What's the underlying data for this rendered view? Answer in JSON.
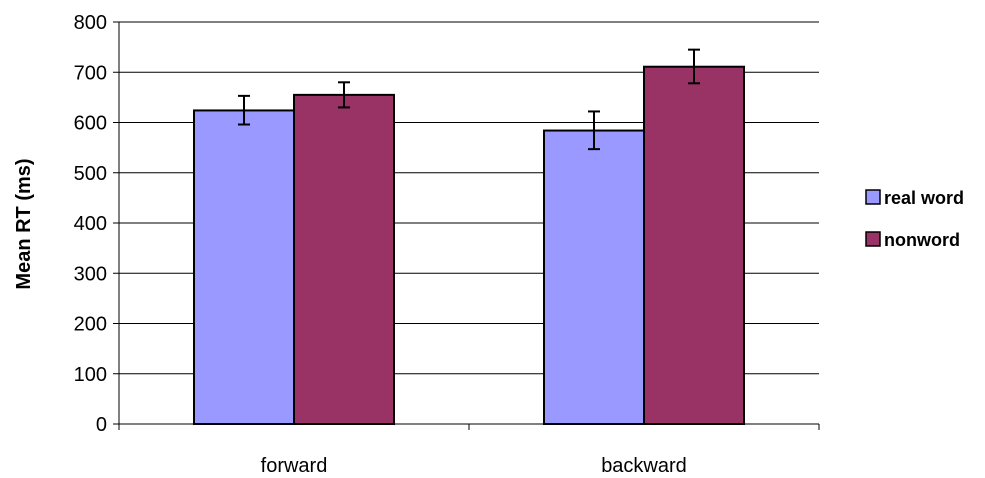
{
  "chart_data": {
    "type": "bar",
    "title": "",
    "xlabel": "",
    "ylabel": "Mean RT (ms)",
    "categories": [
      "forward",
      "backward"
    ],
    "ylim": [
      0,
      800
    ],
    "yticks": [
      0,
      100,
      200,
      300,
      400,
      500,
      600,
      700,
      800
    ],
    "grid": "horizontal",
    "legend_position": "right",
    "series": [
      {
        "name": "real word",
        "color": "#9999FF",
        "values": [
          624,
          584
        ],
        "error": [
          [
            596,
            653
          ],
          [
            547,
            622
          ]
        ]
      },
      {
        "name": "nonword",
        "color": "#993366",
        "values": [
          655,
          711
        ],
        "error": [
          [
            630,
            680
          ],
          [
            678,
            745
          ]
        ]
      }
    ]
  }
}
